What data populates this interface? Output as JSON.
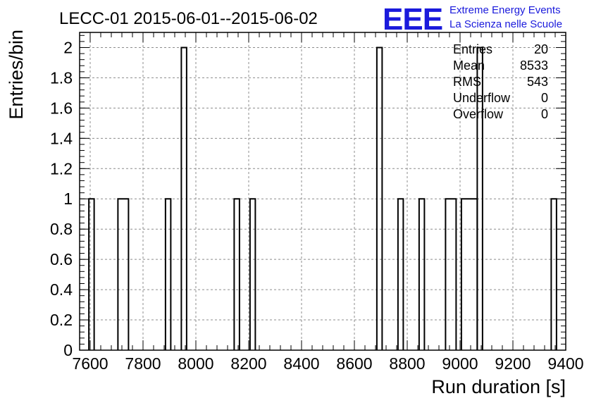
{
  "chart_data": {
    "type": "bar",
    "title": "LECC-01 2015-06-01--2015-06-02",
    "xlabel": "Run duration [s]",
    "ylabel": "Entries/bin",
    "xlim": [
      7560,
      9400
    ],
    "ylim": [
      0,
      2.1
    ],
    "x_ticks": [
      "7600",
      "7800",
      "8000",
      "8200",
      "8400",
      "8600",
      "8800",
      "9000",
      "9200",
      "9400"
    ],
    "y_ticks": [
      "0",
      "0.2",
      "0.4",
      "0.6",
      "0.8",
      "1",
      "1.2",
      "1.4",
      "1.6",
      "1.8",
      "2"
    ],
    "grid": true,
    "bins": [
      {
        "x0": 7595,
        "x1": 7615,
        "value": 1
      },
      {
        "x0": 7705,
        "x1": 7745,
        "value": 1
      },
      {
        "x0": 7885,
        "x1": 7905,
        "value": 1
      },
      {
        "x0": 7945,
        "x1": 7965,
        "value": 2
      },
      {
        "x0": 8145,
        "x1": 8165,
        "value": 1
      },
      {
        "x0": 8205,
        "x1": 8225,
        "value": 1
      },
      {
        "x0": 8685,
        "x1": 8705,
        "value": 2
      },
      {
        "x0": 8765,
        "x1": 8785,
        "value": 1
      },
      {
        "x0": 8845,
        "x1": 8865,
        "value": 1
      },
      {
        "x0": 8945,
        "x1": 8985,
        "value": 1
      },
      {
        "x0": 9005,
        "x1": 9065,
        "value": 1
      },
      {
        "x0": 9065,
        "x1": 9085,
        "value": 2
      },
      {
        "x0": 9345,
        "x1": 9365,
        "value": 1
      }
    ],
    "stats": [
      {
        "label": "Entries",
        "value": "20"
      },
      {
        "label": "Mean",
        "value": "8533"
      },
      {
        "label": "RMS",
        "value": "543"
      },
      {
        "label": "Underflow",
        "value": "0"
      },
      {
        "label": "Overflow",
        "value": "0"
      }
    ],
    "legend_placement": "top-right"
  },
  "logo": {
    "mark": "EEE",
    "line1": "Extreme Energy Events",
    "line2": "La Scienza nelle Scuole",
    "color": "#1a1adc"
  }
}
